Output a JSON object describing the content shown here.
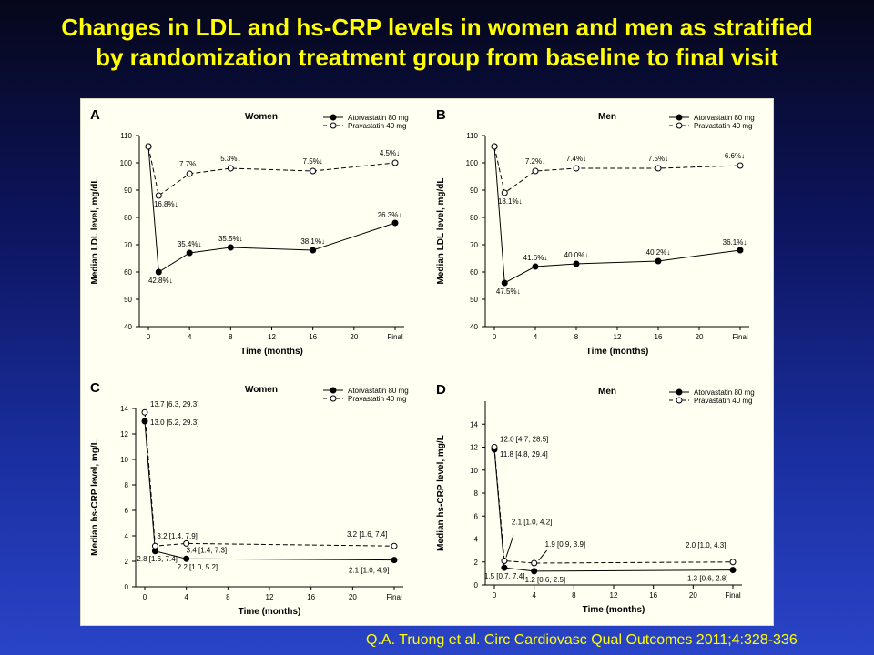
{
  "title_line1": "Changes in LDL and hs-CRP levels in women and men as stratified",
  "title_line2": "by randomization treatment group from baseline to final visit",
  "citation": "Q.A. Truong et al. Circ Cardiovasc Qual Outcomes 2011;4:328-336",
  "colors": {
    "title": "#ffff00",
    "panel_bg": "#fffff2",
    "series": "#000000"
  },
  "chart_data": [
    {
      "type": "line",
      "panel_letter": "A",
      "title": "Women",
      "xlabel": "Time (months)",
      "ylabel": "Median LDL level, mg/dL",
      "x_ticks": [
        "0",
        "4",
        "8",
        "12",
        "16",
        "20",
        "Final"
      ],
      "x_tick_values": [
        0,
        4,
        8,
        12,
        16,
        20,
        24
      ],
      "ylim": [
        40,
        110
      ],
      "y_ticks": [
        40,
        50,
        60,
        70,
        80,
        90,
        100,
        110
      ],
      "legend_position": "top-right",
      "series": [
        {
          "name": "Atorvastatin 80 mg",
          "marker": "filled",
          "dash": "solid",
          "x": [
            0,
            1,
            4,
            8,
            16,
            24
          ],
          "y": [
            106,
            60,
            67,
            69,
            68,
            78
          ],
          "labels": [
            "",
            "42.8%↓",
            "35.4%↓",
            "35.5%↓",
            "38.1%↓",
            "26.3%↓"
          ]
        },
        {
          "name": "Pravastatin 40 mg",
          "marker": "open",
          "dash": "dashed",
          "x": [
            0,
            1,
            4,
            8,
            16,
            24
          ],
          "y": [
            106,
            88,
            96,
            98,
            97,
            100
          ],
          "labels": [
            "",
            "16.8%↓",
            "7.7%↓",
            "5.3%↓",
            "7.5%↓",
            "4.5%↓"
          ]
        }
      ]
    },
    {
      "type": "line",
      "panel_letter": "B",
      "title": "Men",
      "xlabel": "Time (months)",
      "ylabel": "Median LDL level, mg/dL",
      "x_ticks": [
        "0",
        "4",
        "8",
        "12",
        "16",
        "20",
        "Final"
      ],
      "x_tick_values": [
        0,
        4,
        8,
        12,
        16,
        20,
        24
      ],
      "ylim": [
        40,
        110
      ],
      "y_ticks": [
        40,
        50,
        60,
        70,
        80,
        90,
        100,
        110
      ],
      "legend_position": "top-right",
      "series": [
        {
          "name": "Atorvastatin 80 mg",
          "marker": "filled",
          "dash": "solid",
          "x": [
            0,
            1,
            4,
            8,
            16,
            24
          ],
          "y": [
            106,
            56,
            62,
            63,
            64,
            68
          ],
          "labels": [
            "",
            "47.5%↓",
            "41.6%↓",
            "40.0%↓",
            "40.2%↓",
            "36.1%↓"
          ]
        },
        {
          "name": "Pravastatin 40 mg",
          "marker": "open",
          "dash": "dashed",
          "x": [
            0,
            1,
            4,
            8,
            16,
            24
          ],
          "y": [
            106,
            89,
            97,
            98,
            98,
            99
          ],
          "labels": [
            "",
            "18.1%↓",
            "7.2%↓",
            "7.4%↓",
            "7.5%↓",
            "6.6%↓"
          ]
        }
      ]
    },
    {
      "type": "line",
      "panel_letter": "C",
      "title": "Women",
      "xlabel": "Time (months)",
      "ylabel": "Median hs-CRP level, mg/L",
      "x_ticks": [
        "0",
        "4",
        "8",
        "12",
        "16",
        "20",
        "Final"
      ],
      "x_tick_values": [
        0,
        4,
        8,
        12,
        16,
        20,
        24
      ],
      "ylim": [
        0,
        14
      ],
      "y_ticks": [
        0,
        2,
        4,
        6,
        8,
        10,
        12,
        14
      ],
      "legend_position": "top-right",
      "series": [
        {
          "name": "Atorvastatin 80 mg",
          "marker": "filled",
          "dash": "solid",
          "x": [
            0,
            1,
            4,
            24
          ],
          "y": [
            13.0,
            2.8,
            2.2,
            2.1
          ],
          "labels": [
            "13.0 [5.2, 29.3]",
            "2.8 [1.6, 7.4]",
            "2.2 [1.0, 5.2]",
            "2.1 [1.0, 4.9]"
          ]
        },
        {
          "name": "Pravastatin 40 mg",
          "marker": "open",
          "dash": "dashed",
          "x": [
            0,
            1,
            4,
            24
          ],
          "y": [
            13.7,
            3.2,
            3.4,
            3.2
          ],
          "labels": [
            "13.7 [6.3, 29.3]",
            "3.2 [1.4, 7.9]",
            "3.4 [1.4, 7.3]",
            "3.2 [1.6, 7.4]"
          ]
        }
      ]
    },
    {
      "type": "line",
      "panel_letter": "D",
      "title": "Men",
      "xlabel": "Time (months)",
      "ylabel": "Median hs-CRP level, mg/L",
      "x_ticks": [
        "0",
        "4",
        "8",
        "12",
        "16",
        "20",
        "Final"
      ],
      "x_tick_values": [
        0,
        4,
        8,
        12,
        16,
        20,
        24
      ],
      "ylim": [
        0,
        16
      ],
      "y_ticks": [
        0,
        2,
        4,
        6,
        8,
        10,
        12,
        14
      ],
      "legend_position": "top-right",
      "series": [
        {
          "name": "Atorvastatin 80 mg",
          "marker": "filled",
          "dash": "solid",
          "x": [
            0,
            1,
            4,
            24
          ],
          "y": [
            11.8,
            1.5,
            1.2,
            1.3
          ],
          "labels": [
            "11.8 [4.8, 29.4]",
            "1.5 [0.7, 7.4]",
            "1.2 [0.6, 2.5]",
            "1.3 [0.6, 2.8]"
          ]
        },
        {
          "name": "Pravastatin 40 mg",
          "marker": "open",
          "dash": "dashed",
          "x": [
            0,
            1,
            4,
            24
          ],
          "y": [
            12.0,
            2.1,
            1.9,
            2.0
          ],
          "labels": [
            "12.0 [4.7, 28.5]",
            "2.1 [1.0, 4.2]",
            "1.9 [0.9, 3.9]",
            "2.0 [1.0, 4.3]"
          ]
        }
      ]
    }
  ]
}
